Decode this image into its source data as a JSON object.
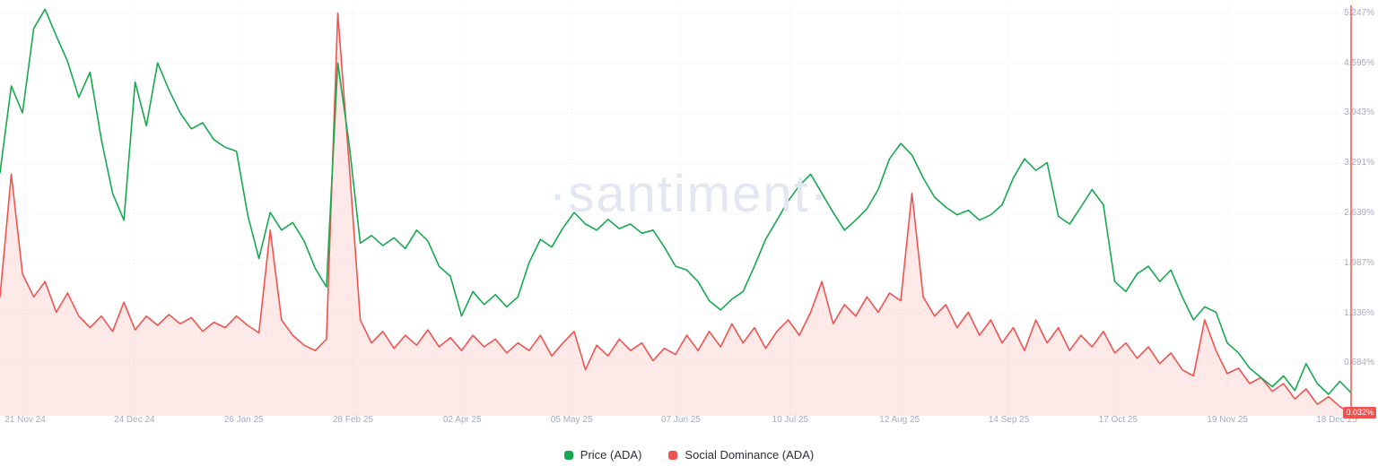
{
  "watermark": "·santiment·",
  "axis": {
    "x_ticks": [
      "21 Nov 24",
      "24 Dec 24",
      "26 Jan 25",
      "28 Feb 25",
      "02 Apr 25",
      "05 May 25",
      "07 Jun 25",
      "10 Jul 25",
      "12 Aug 25",
      "14 Sep 25",
      "17 Oct 25",
      "19 Nov 25",
      "18 Dec 25"
    ],
    "y_ticks": [
      "5.247%",
      "4.595%",
      "3.943%",
      "3.291%",
      "2.639%",
      "1.987%",
      "1.336%",
      "0.684%"
    ],
    "last_value_badge": "0.032%"
  },
  "chart_data": {
    "type": "line",
    "title": "",
    "x_ticks": [
      "21 Nov 24",
      "24 Dec 24",
      "26 Jan 25",
      "28 Feb 25",
      "02 Apr 25",
      "05 May 25",
      "07 Jun 25",
      "10 Jul 25",
      "12 Aug 25",
      "14 Sep 25",
      "17 Oct 25",
      "19 Nov 25",
      "18 Dec 25"
    ],
    "y_ticks_values": [
      5.247,
      4.595,
      3.943,
      3.291,
      2.639,
      1.987,
      1.336,
      0.684
    ],
    "y_unit": "%",
    "ylim": [
      0,
      5.35
    ],
    "grid": "dotted",
    "legend_position": "bottom-center",
    "latest_value": 0.032,
    "series": [
      {
        "name": "Price (ADA)",
        "color": "#17a94f",
        "fill": false,
        "values": [
          3.17,
          4.3,
          3.95,
          5.05,
          5.3,
          4.95,
          4.62,
          4.15,
          4.48,
          3.6,
          2.9,
          2.55,
          4.35,
          3.78,
          4.6,
          4.25,
          3.95,
          3.74,
          3.82,
          3.6,
          3.5,
          3.45,
          2.62,
          2.05,
          2.65,
          2.42,
          2.52,
          2.28,
          1.92,
          1.68,
          4.6,
          3.55,
          2.25,
          2.35,
          2.22,
          2.32,
          2.18,
          2.42,
          2.28,
          1.95,
          1.82,
          1.3,
          1.62,
          1.45,
          1.58,
          1.42,
          1.55,
          2.0,
          2.3,
          2.2,
          2.45,
          2.65,
          2.5,
          2.42,
          2.56,
          2.44,
          2.5,
          2.38,
          2.42,
          2.2,
          1.95,
          1.9,
          1.75,
          1.5,
          1.38,
          1.52,
          1.62,
          1.95,
          2.3,
          2.55,
          2.8,
          3.0,
          3.15,
          2.9,
          2.65,
          2.42,
          2.55,
          2.7,
          2.95,
          3.35,
          3.55,
          3.4,
          3.1,
          2.85,
          2.72,
          2.62,
          2.68,
          2.55,
          2.62,
          2.75,
          3.1,
          3.35,
          3.2,
          3.3,
          2.6,
          2.5,
          2.72,
          2.95,
          2.75,
          1.75,
          1.62,
          1.85,
          1.95,
          1.75,
          1.9,
          1.55,
          1.25,
          1.42,
          1.35,
          0.95,
          0.82,
          0.62,
          0.5,
          0.38,
          0.52,
          0.33,
          0.68,
          0.42,
          0.28,
          0.45,
          0.3
        ]
      },
      {
        "name": "Social Dominance (ADA)",
        "color": "#ef5350",
        "fill": true,
        "fill_color": "rgba(239,83,80,0.13)",
        "values": [
          1.55,
          3.15,
          1.85,
          1.55,
          1.75,
          1.35,
          1.6,
          1.3,
          1.15,
          1.3,
          1.1,
          1.48,
          1.12,
          1.3,
          1.18,
          1.32,
          1.2,
          1.28,
          1.1,
          1.22,
          1.15,
          1.3,
          1.18,
          1.08,
          2.42,
          1.25,
          1.05,
          0.92,
          0.85,
          1.0,
          5.25,
          3.3,
          1.25,
          0.95,
          1.1,
          0.88,
          1.05,
          0.92,
          1.12,
          0.9,
          1.02,
          0.85,
          1.05,
          0.9,
          1.0,
          0.82,
          0.95,
          0.85,
          1.05,
          0.78,
          0.95,
          1.1,
          0.6,
          0.92,
          0.78,
          1.0,
          0.85,
          0.95,
          0.72,
          0.88,
          0.8,
          1.05,
          0.85,
          1.1,
          0.9,
          1.2,
          0.95,
          1.15,
          0.88,
          1.1,
          1.25,
          1.05,
          1.35,
          1.75,
          1.2,
          1.45,
          1.3,
          1.55,
          1.35,
          1.6,
          1.5,
          2.9,
          1.55,
          1.3,
          1.45,
          1.15,
          1.35,
          1.05,
          1.25,
          0.95,
          1.15,
          0.85,
          1.25,
          0.95,
          1.15,
          0.85,
          1.05,
          0.9,
          1.1,
          0.82,
          0.95,
          0.75,
          0.9,
          0.68,
          0.82,
          0.6,
          0.52,
          1.25,
          0.85,
          0.55,
          0.62,
          0.42,
          0.5,
          0.32,
          0.42,
          0.22,
          0.35,
          0.15,
          0.25,
          0.12,
          0.032
        ]
      }
    ]
  }
}
